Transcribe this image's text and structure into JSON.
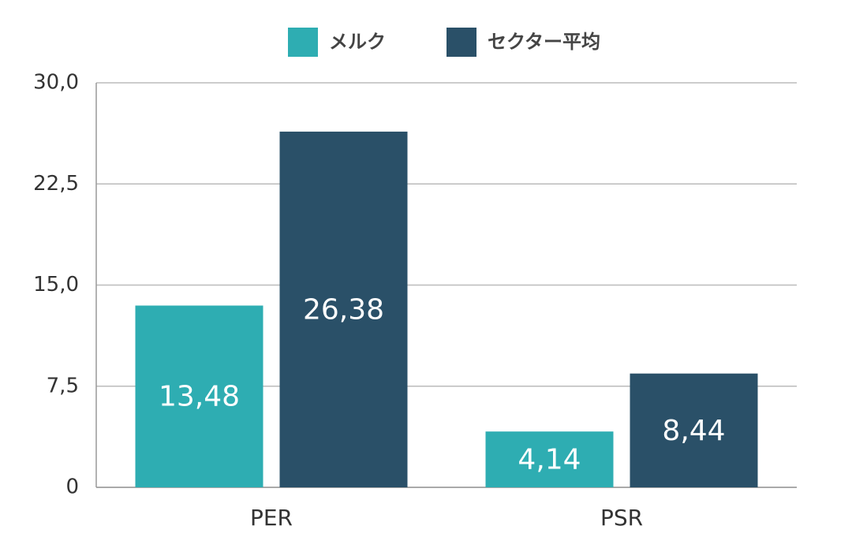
{
  "chart_data": {
    "type": "bar",
    "categories": [
      "PER",
      "PSR"
    ],
    "series": [
      {
        "name": "メルク",
        "color": "#2eadb2",
        "values": [
          13.48,
          4.14
        ],
        "value_labels": [
          "13,48",
          "4,14"
        ]
      },
      {
        "name": "セクター平均",
        "color": "#2a5068",
        "values": [
          26.38,
          8.44
        ],
        "value_labels": [
          "26,38",
          "8,44"
        ]
      }
    ],
    "ylim": [
      0,
      30
    ],
    "yticks": [
      0,
      {
        "value": 7.5,
        "label": "7,5"
      },
      {
        "value": 15,
        "label": "15,0"
      },
      {
        "value": 22.5,
        "label": "22,5"
      },
      {
        "value": 30,
        "label": "30,0"
      }
    ],
    "grid": true,
    "legend": "top"
  }
}
